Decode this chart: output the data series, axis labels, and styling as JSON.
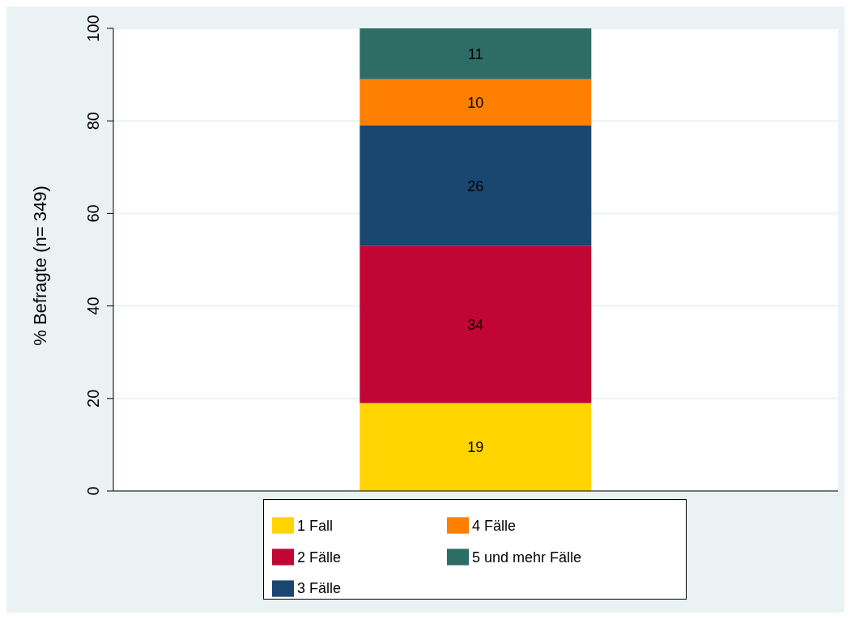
{
  "chart_data": {
    "type": "bar",
    "ylabel": "% Befragte (n= 349)",
    "categories": [
      null
    ],
    "stacked": true,
    "data_labels": true,
    "ylim": [
      0,
      100
    ],
    "yticks": [
      0,
      20,
      40,
      60,
      80,
      100
    ],
    "grid": "y",
    "legend": "bottom",
    "series": [
      {
        "name": "1 Fall",
        "color": "#ffd400",
        "values": [
          19
        ]
      },
      {
        "name": "2 Fälle",
        "color": "#c10534",
        "values": [
          34
        ]
      },
      {
        "name": "3 Fälle",
        "color": "#1a476f",
        "values": [
          26
        ]
      },
      {
        "name": "4 Fälle",
        "color": "#ff7f00",
        "values": [
          10
        ]
      },
      {
        "name": "5 und mehr Fälle",
        "color": "#2d6d66",
        "values": [
          11
        ]
      }
    ]
  }
}
